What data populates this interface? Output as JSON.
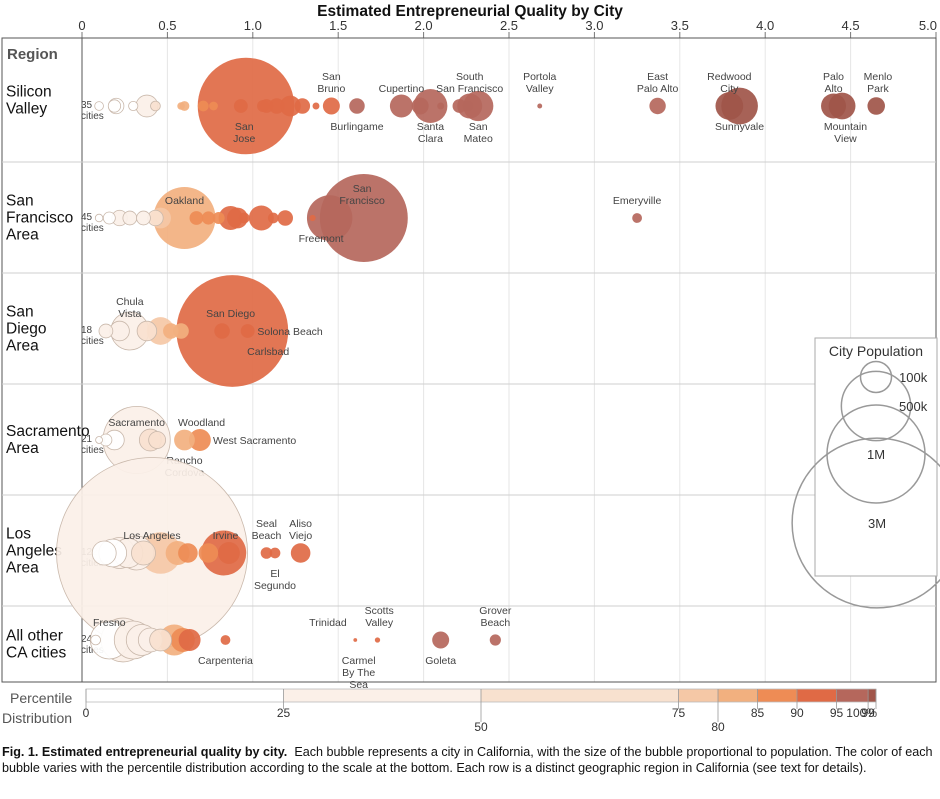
{
  "chart_data": {
    "type": "scatter",
    "title": "Estimated Entrepreneurial Quality by City",
    "xlabel": "",
    "xlim": [
      0,
      5.0
    ],
    "xticks": [
      "0",
      "0.5",
      "1.0",
      "1.5",
      "2.0",
      "2.5",
      "3.0",
      "3.5",
      "4.0",
      "4.5",
      "5.0"
    ],
    "row_header": "Region",
    "colors": {
      "p25": "#ffffff",
      "p50": "#fbf0e8",
      "p75": "#f8e1cf",
      "p80": "#f5c8a6",
      "p85": "#f2b07f",
      "p90": "#ee8c55",
      "p95": "#e06a45",
      "p99": "#b5675c",
      "p100": "#a05549",
      "grid": "#cfcfcf",
      "border": "#555555"
    },
    "regions": [
      {
        "name_lines": [
          "Silicon",
          "Valley"
        ],
        "count_lines": [
          "35",
          "cities"
        ],
        "bubbles": [
          {
            "x": 0.1,
            "pop": 8000,
            "c": "p25"
          },
          {
            "x": 0.2,
            "pop": 25000,
            "c": "p25"
          },
          {
            "x": 0.19,
            "pop": 16000,
            "c": "p25"
          },
          {
            "x": 0.3,
            "pop": 9000,
            "c": "p25"
          },
          {
            "x": 0.38,
            "pop": 50000,
            "c": "p50"
          },
          {
            "x": 0.43,
            "pop": 10000,
            "c": "p75"
          },
          {
            "x": 0.58,
            "pop": 6000,
            "c": "p85"
          },
          {
            "x": 0.6,
            "pop": 10000,
            "c": "p85"
          },
          {
            "x": 0.71,
            "pop": 12000,
            "c": "p90"
          },
          {
            "x": 0.77,
            "pop": 8000,
            "c": "p90"
          },
          {
            "x": 0.93,
            "pop": 20000,
            "c": "p95"
          },
          {
            "x": 0.96,
            "pop": 970000,
            "c": "p95"
          },
          {
            "x": 1.06,
            "pop": 15000,
            "c": "p95"
          },
          {
            "x": 1.08,
            "pop": 20000,
            "c": "p95"
          },
          {
            "x": 1.14,
            "pop": 25000,
            "c": "p95"
          },
          {
            "x": 1.22,
            "pop": 45000,
            "c": "p95"
          },
          {
            "x": 1.29,
            "pop": 25000,
            "c": "p95"
          },
          {
            "x": 1.37,
            "pop": 5000,
            "c": "p95"
          },
          {
            "x": 1.46,
            "pop": 30000,
            "c": "p95"
          },
          {
            "x": 1.61,
            "pop": 25000,
            "c": "p99"
          },
          {
            "x": 1.87,
            "pop": 55000,
            "c": "p99"
          },
          {
            "x": 1.98,
            "pop": 30000,
            "c": "p99"
          },
          {
            "x": 2.04,
            "pop": 120000,
            "c": "p99"
          },
          {
            "x": 2.1,
            "pop": 5000,
            "c": "p99"
          },
          {
            "x": 2.21,
            "pop": 20000,
            "c": "p99"
          },
          {
            "x": 2.27,
            "pop": 65000,
            "c": "p99"
          },
          {
            "x": 2.26,
            "pop": 12000,
            "c": "p99"
          },
          {
            "x": 2.32,
            "pop": 95000,
            "c": "p99"
          },
          {
            "x": 2.68,
            "pop": 2500,
            "c": "p99"
          },
          {
            "x": 3.37,
            "pop": 28000,
            "c": "p99"
          },
          {
            "x": 3.79,
            "pop": 80000,
            "c": "p100"
          },
          {
            "x": 3.85,
            "pop": 140000,
            "c": "p100"
          },
          {
            "x": 4.4,
            "pop": 65000,
            "c": "p100"
          },
          {
            "x": 4.45,
            "pop": 75000,
            "c": "p100"
          },
          {
            "x": 4.65,
            "pop": 32000,
            "c": "p100"
          }
        ],
        "labels": [
          {
            "x": 0.95,
            "lines": [
              "San",
              "Jose"
            ],
            "pos": "below"
          },
          {
            "x": 1.46,
            "lines": [
              "San",
              "Bruno"
            ],
            "pos": "above"
          },
          {
            "x": 1.61,
            "lines": [
              "Burlingame"
            ],
            "pos": "below"
          },
          {
            "x": 1.87,
            "lines": [
              "Cupertino"
            ],
            "pos": "above"
          },
          {
            "x": 2.04,
            "lines": [
              "Santa",
              "Clara"
            ],
            "pos": "below"
          },
          {
            "x": 2.27,
            "lines": [
              "South",
              "San Francisco"
            ],
            "pos": "above"
          },
          {
            "x": 2.32,
            "lines": [
              "San",
              "Mateo"
            ],
            "pos": "below"
          },
          {
            "x": 2.68,
            "lines": [
              "Portola",
              "Valley"
            ],
            "pos": "above"
          },
          {
            "x": 3.37,
            "lines": [
              "East",
              "Palo Alto"
            ],
            "pos": "above"
          },
          {
            "x": 3.79,
            "lines": [
              "Redwood",
              "City"
            ],
            "pos": "above"
          },
          {
            "x": 3.85,
            "lines": [
              "Sunnyvale"
            ],
            "pos": "below"
          },
          {
            "x": 4.4,
            "lines": [
              "Palo",
              "Alto"
            ],
            "pos": "above"
          },
          {
            "x": 4.47,
            "lines": [
              "Mountain",
              "View"
            ],
            "pos": "below"
          },
          {
            "x": 4.66,
            "lines": [
              "Menlo",
              "Park"
            ],
            "pos": "above"
          }
        ]
      },
      {
        "name_lines": [
          "San",
          "Francisco",
          "Area"
        ],
        "count_lines": [
          "45",
          "cities"
        ],
        "bubbles": [
          {
            "x": 0.1,
            "pop": 6000,
            "c": "p25"
          },
          {
            "x": 0.16,
            "pop": 15000,
            "c": "p25"
          },
          {
            "x": 0.22,
            "pop": 25000,
            "c": "p50"
          },
          {
            "x": 0.28,
            "pop": 20000,
            "c": "p50"
          },
          {
            "x": 0.36,
            "pop": 20000,
            "c": "p50"
          },
          {
            "x": 0.43,
            "pop": 25000,
            "c": "p75"
          },
          {
            "x": 0.46,
            "pop": 45000,
            "c": "p80"
          },
          {
            "x": 0.6,
            "pop": 400000,
            "c": "p85"
          },
          {
            "x": 0.67,
            "pop": 20000,
            "c": "p90"
          },
          {
            "x": 0.74,
            "pop": 18000,
            "c": "p90"
          },
          {
            "x": 0.8,
            "pop": 15000,
            "c": "p90"
          },
          {
            "x": 0.87,
            "pop": 60000,
            "c": "p95"
          },
          {
            "x": 0.91,
            "pop": 45000,
            "c": "p95"
          },
          {
            "x": 0.95,
            "pop": 12000,
            "c": "p95"
          },
          {
            "x": 1.05,
            "pop": 65000,
            "c": "p95"
          },
          {
            "x": 1.12,
            "pop": 12000,
            "c": "p95"
          },
          {
            "x": 1.19,
            "pop": 25000,
            "c": "p95"
          },
          {
            "x": 1.35,
            "pop": 4000,
            "c": "p95"
          },
          {
            "x": 1.45,
            "pop": 215000,
            "c": "p99"
          },
          {
            "x": 1.65,
            "pop": 805000,
            "c": "p99"
          },
          {
            "x": 3.25,
            "pop": 10000,
            "c": "p99"
          }
        ],
        "labels": [
          {
            "x": 0.6,
            "lines": [
              "Oakland"
            ],
            "pos": "above"
          },
          {
            "x": 1.64,
            "lines": [
              "San",
              "Francisco"
            ],
            "pos": "above"
          },
          {
            "x": 1.4,
            "lines": [
              "Freemont"
            ],
            "pos": "below"
          },
          {
            "x": 3.25,
            "lines": [
              "Emeryville"
            ],
            "pos": "above"
          }
        ]
      },
      {
        "name_lines": [
          "San",
          "Diego",
          "Area"
        ],
        "count_lines": [
          "18",
          "cities"
        ],
        "bubbles": [
          {
            "x": 0.14,
            "pop": 20000,
            "c": "p50"
          },
          {
            "x": 0.22,
            "pop": 40000,
            "c": "p50"
          },
          {
            "x": 0.28,
            "pop": 150000,
            "c": "p50"
          },
          {
            "x": 0.38,
            "pop": 40000,
            "c": "p75"
          },
          {
            "x": 0.46,
            "pop": 80000,
            "c": "p80"
          },
          {
            "x": 0.52,
            "pop": 25000,
            "c": "p85"
          },
          {
            "x": 0.58,
            "pop": 25000,
            "c": "p85"
          },
          {
            "x": 0.88,
            "pop": 1300000,
            "c": "p95"
          },
          {
            "x": 0.82,
            "pop": 25000,
            "c": "p95"
          },
          {
            "x": 0.97,
            "pop": 20000,
            "c": "p95"
          }
        ],
        "labels": [
          {
            "x": 0.28,
            "lines": [
              "Chula",
              "Vista"
            ],
            "pos": "above"
          },
          {
            "x": 0.87,
            "lines": [
              "San Diego"
            ],
            "pos": "above"
          },
          {
            "x": 0.98,
            "lines": [
              "Solona Beach"
            ],
            "pos": "right"
          },
          {
            "x": 1.09,
            "lines": [
              "Carlsbad"
            ],
            "pos": "below"
          }
        ]
      },
      {
        "name_lines": [
          "Sacramento",
          "Area"
        ],
        "count_lines": [
          "21",
          "cities"
        ],
        "bubbles": [
          {
            "x": 0.1,
            "pop": 5000,
            "c": "p25"
          },
          {
            "x": 0.14,
            "pop": 15000,
            "c": "p25"
          },
          {
            "x": 0.19,
            "pop": 40000,
            "c": "p25"
          },
          {
            "x": 0.32,
            "pop": 470000,
            "c": "p50"
          },
          {
            "x": 0.4,
            "pop": 50000,
            "c": "p75"
          },
          {
            "x": 0.44,
            "pop": 30000,
            "c": "p75"
          },
          {
            "x": 0.6,
            "pop": 45000,
            "c": "p85"
          },
          {
            "x": 0.69,
            "pop": 50000,
            "c": "p90"
          }
        ],
        "labels": [
          {
            "x": 0.32,
            "lines": [
              "Sacramento"
            ],
            "pos": "above"
          },
          {
            "x": 0.7,
            "lines": [
              "Woodland"
            ],
            "pos": "above"
          },
          {
            "x": 0.72,
            "lines": [
              "West Sacramento"
            ],
            "pos": "right"
          },
          {
            "x": 0.6,
            "lines": [
              "Rancho",
              "Cordova"
            ],
            "pos": "below"
          }
        ]
      },
      {
        "name_lines": [
          "Los",
          "Angeles",
          "Area"
        ],
        "count_lines": [
          "122",
          "cities"
        ],
        "bubbles": [
          {
            "x": 0.13,
            "pop": 60000,
            "c": "p25"
          },
          {
            "x": 0.18,
            "pop": 80000,
            "c": "p25"
          },
          {
            "x": 0.22,
            "pop": 100000,
            "c": "p50"
          },
          {
            "x": 0.27,
            "pop": 90000,
            "c": "p50"
          },
          {
            "x": 0.32,
            "pop": 120000,
            "c": "p50"
          },
          {
            "x": 0.41,
            "pop": 3800000,
            "c": "p50"
          },
          {
            "x": 0.36,
            "pop": 60000,
            "c": "p75"
          },
          {
            "x": 0.46,
            "pop": 180000,
            "c": "p80"
          },
          {
            "x": 0.56,
            "pop": 60000,
            "c": "p85"
          },
          {
            "x": 0.62,
            "pop": 40000,
            "c": "p90"
          },
          {
            "x": 0.74,
            "pop": 40000,
            "c": "p90"
          },
          {
            "x": 0.83,
            "pop": 210000,
            "c": "p95"
          },
          {
            "x": 0.86,
            "pop": 50000,
            "c": "p95"
          },
          {
            "x": 1.08,
            "pop": 14000,
            "c": "p95"
          },
          {
            "x": 1.13,
            "pop": 12000,
            "c": "p95"
          },
          {
            "x": 1.28,
            "pop": 40000,
            "c": "p95"
          }
        ],
        "labels": [
          {
            "x": 0.41,
            "lines": [
              "Los Angeles"
            ],
            "pos": "above"
          },
          {
            "x": 0.84,
            "lines": [
              "Irvine"
            ],
            "pos": "above"
          },
          {
            "x": 1.08,
            "lines": [
              "Seal",
              "Beach"
            ],
            "pos": "above"
          },
          {
            "x": 1.13,
            "lines": [
              "El",
              "Segundo"
            ],
            "pos": "below"
          },
          {
            "x": 1.28,
            "lines": [
              "Aliso",
              "Viejo"
            ],
            "pos": "above"
          }
        ]
      },
      {
        "name_lines": [
          "All other",
          "CA cities"
        ],
        "count_lines": [
          "241",
          "cities"
        ],
        "bubbles": [
          {
            "x": 0.08,
            "pop": 10000,
            "c": "p25"
          },
          {
            "x": 0.16,
            "pop": 150000,
            "c": "p25"
          },
          {
            "x": 0.24,
            "pop": 200000,
            "c": "p50"
          },
          {
            "x": 0.3,
            "pop": 150000,
            "c": "p50"
          },
          {
            "x": 0.35,
            "pop": 100000,
            "c": "p50"
          },
          {
            "x": 0.4,
            "pop": 60000,
            "c": "p50"
          },
          {
            "x": 0.46,
            "pop": 50000,
            "c": "p75"
          },
          {
            "x": 0.54,
            "pop": 100000,
            "c": "p85"
          },
          {
            "x": 0.59,
            "pop": 60000,
            "c": "p90"
          },
          {
            "x": 0.63,
            "pop": 50000,
            "c": "p95"
          },
          {
            "x": 0.84,
            "pop": 10000,
            "c": "p95"
          },
          {
            "x": 1.6,
            "pop": 1500,
            "c": "p95"
          },
          {
            "x": 1.73,
            "pop": 3000,
            "c": "p95"
          },
          {
            "x": 2.1,
            "pop": 30000,
            "c": "p99"
          },
          {
            "x": 2.42,
            "pop": 13000,
            "c": "p99"
          }
        ],
        "labels": [
          {
            "x": 0.16,
            "lines": [
              "Fresno"
            ],
            "pos": "above"
          },
          {
            "x": 0.84,
            "lines": [
              "Carpenteria"
            ],
            "pos": "below"
          },
          {
            "x": 1.44,
            "lines": [
              "Trinidad"
            ],
            "pos": "above"
          },
          {
            "x": 1.74,
            "lines": [
              "Scotts",
              "Valley"
            ],
            "pos": "above"
          },
          {
            "x": 1.62,
            "lines": [
              "Carmel",
              "By The",
              "Sea"
            ],
            "pos": "below"
          },
          {
            "x": 2.1,
            "lines": [
              "Goleta"
            ],
            "pos": "below"
          },
          {
            "x": 2.42,
            "lines": [
              "Grover",
              "Beach"
            ],
            "pos": "above"
          }
        ]
      }
    ],
    "size_legend": {
      "title": "City Population",
      "items": [
        {
          "label": "100k",
          "pop": 100000
        },
        {
          "label": "500k",
          "pop": 500000
        },
        {
          "label": "1M",
          "pop": 1000000
        },
        {
          "label": "3M",
          "pop": 3000000
        }
      ]
    },
    "color_legend": {
      "title_lines": [
        "Percentile",
        "Distribution"
      ],
      "stops": [
        {
          "pct": 0,
          "label": "0",
          "c": "p25"
        },
        {
          "pct": 25,
          "label": "25",
          "c": "p50"
        },
        {
          "pct": 50,
          "label": "50",
          "c": "p75"
        },
        {
          "pct": 75,
          "label": "75",
          "c": "p80"
        },
        {
          "pct": 80,
          "label": "80",
          "c": "p85"
        },
        {
          "pct": 85,
          "label": "85",
          "c": "p90"
        },
        {
          "pct": 90,
          "label": "90",
          "c": "p95"
        },
        {
          "pct": 95,
          "label": "95",
          "c": "p99"
        },
        {
          "pct": 99,
          "label": "99",
          "c": "p100"
        },
        {
          "pct": 100,
          "label": "100%",
          "c": "p100"
        }
      ]
    }
  },
  "caption": {
    "bold": "Fig. 1. Estimated entrepreneurial quality by city.",
    "text": "Each bubble represents a city in California, with the size of the bubble proportional to population.  The color of each bubble varies with the percentile distribution according to the scale at the bottom.  Each row is a distinct geographic region in California (see text for details)."
  }
}
